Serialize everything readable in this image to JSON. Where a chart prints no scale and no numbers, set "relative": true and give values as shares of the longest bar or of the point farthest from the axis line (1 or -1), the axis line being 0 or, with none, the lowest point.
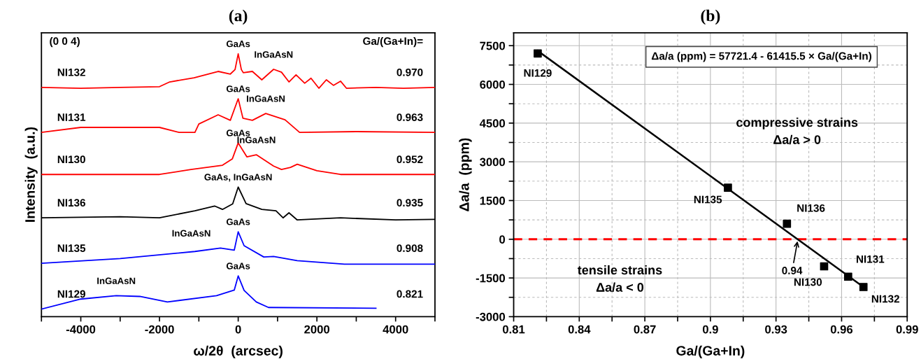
{
  "chart_data": [
    {
      "type": "line",
      "title": "(a)",
      "xlabel": "ω/2θ  (arcsec)",
      "ylabel": "Intensity  (a.u.)",
      "relative": true,
      "tick_labels": "x",
      "legend": false,
      "grid": false,
      "xlim": [
        -5000,
        5000
      ],
      "xticks": [
        {
          "value": -5000,
          "label": null
        },
        -4000,
        {
          "value": -3000,
          "label": null
        },
        -2000,
        {
          "value": -1000,
          "label": null
        },
        0,
        {
          "value": 1000,
          "label": null
        },
        2000,
        {
          "value": 3000,
          "label": null
        },
        4000,
        {
          "value": 5000,
          "label": null
        }
      ],
      "series": [
        {
          "name": "NI132",
          "color": "#ff0000",
          "x": [
            -5000,
            -4000,
            -3000,
            -2000,
            -1740,
            -1120,
            -510,
            -200,
            -80,
            0,
            80,
            130,
            360,
            600,
            900,
            1100,
            1290,
            1470,
            1690,
            1850,
            2050,
            2240,
            2420,
            2600,
            2750,
            3500,
            4200,
            5000
          ],
          "values": [
            0.872,
            0.869,
            0.872,
            0.875,
            0.893,
            0.909,
            0.933,
            0.923,
            0.94,
            1.0,
            0.94,
            0.928,
            0.933,
            0.901,
            0.941,
            0.93,
            0.893,
            0.92,
            0.888,
            0.907,
            0.869,
            0.901,
            0.88,
            0.896,
            0.869,
            0.872,
            0.869,
            0.872
          ]
        },
        {
          "name": "NI131",
          "color": "#ff0000",
          "x": [
            -5000,
            -4000,
            -3000,
            -2000,
            -1500,
            -1100,
            -1000,
            -510,
            -200,
            0,
            120,
            360,
            700,
            1190,
            1560,
            3000,
            5000
          ],
          "values": [
            0.701,
            0.72,
            0.72,
            0.72,
            0.701,
            0.701,
            0.733,
            0.768,
            0.747,
            0.829,
            0.755,
            0.747,
            0.773,
            0.749,
            0.701,
            0.704,
            0.701
          ]
        },
        {
          "name": "NI130",
          "color": "#ff0000",
          "x": [
            -5000,
            -3000,
            -2000,
            -1200,
            -400,
            -150,
            0,
            220,
            460,
            900,
            1100,
            1330,
            1500,
            2000,
            2600,
            5000
          ],
          "values": [
            0.541,
            0.541,
            0.541,
            0.56,
            0.576,
            0.6,
            0.661,
            0.608,
            0.616,
            0.573,
            0.56,
            0.568,
            0.58,
            0.555,
            0.541,
            0.541
          ]
        },
        {
          "name": "NI136",
          "color": "#000000",
          "x": [
            -5000,
            -3000,
            -2000,
            -1100,
            -600,
            -400,
            -140,
            0,
            200,
            600,
            960,
            1140,
            1290,
            1500,
            2600,
            4000,
            5000
          ],
          "values": [
            0.376,
            0.38,
            0.376,
            0.403,
            0.421,
            0.408,
            0.429,
            0.493,
            0.43,
            0.408,
            0.403,
            0.376,
            0.395,
            0.368,
            0.376,
            0.368,
            0.37
          ]
        },
        {
          "name": "NI135",
          "color": "#0000ff",
          "x": [
            -5000,
            -3000,
            -1100,
            -450,
            -100,
            0,
            150,
            650,
            900,
            1500,
            2700,
            5000
          ],
          "values": [
            0.203,
            0.221,
            0.248,
            0.261,
            0.253,
            0.323,
            0.27,
            0.227,
            0.229,
            0.213,
            0.2,
            0.2
          ]
        },
        {
          "name": "NI129",
          "color": "#0000ff",
          "x": [
            -5000,
            -4000,
            -3100,
            -2500,
            -1800,
            -550,
            -100,
            0,
            150,
            460,
            770,
            3500
          ],
          "values": [
            0.029,
            0.067,
            0.08,
            0.077,
            0.056,
            0.08,
            0.101,
            0.155,
            0.1,
            0.056,
            0.035,
            0.032
          ]
        }
      ],
      "annotations": [
        "(0 0 4)",
        "Ga/(Ga+In)=",
        "0.970",
        "0.963",
        "0.952",
        "0.935",
        "0.908",
        "0.821",
        {
          "text": "GaAs",
          "x": 0,
          "y": 1.0
        },
        {
          "text": "InGaAsN",
          "x": 900,
          "y": 0.941
        },
        {
          "text": "GaAs",
          "x": 0,
          "y": 0.829
        },
        {
          "text": "InGaAsN",
          "x": 700,
          "y": 0.773
        },
        {
          "text": "GaAs",
          "x": 0,
          "y": 0.661
        },
        {
          "text": "InGaAsN",
          "x": 460,
          "y": 0.616
        },
        {
          "text": "GaAs, InGaAsN",
          "x": 0,
          "y": 0.493
        },
        {
          "text": "GaAs",
          "x": 0,
          "y": 0.323
        },
        {
          "text": "InGaAsN",
          "x": -450,
          "y": 0.261
        },
        {
          "text": "GaAs",
          "x": 0,
          "y": 0.155
        },
        {
          "text": "InGaAsN",
          "x": -3100,
          "y": 0.08
        }
      ]
    },
    {
      "type": "scatter",
      "title": "(b)",
      "xlabel": "Ga/(Ga+In)",
      "ylabel": "Δa/a  (ppm)",
      "legend": false,
      "grid": true,
      "xlim": [
        0.81,
        0.99
      ],
      "xticks": [
        0.81,
        {
          "value": 0.825,
          "label": null
        },
        0.84,
        {
          "value": 0.855,
          "label": null
        },
        0.87,
        {
          "value": 0.885,
          "label": null
        },
        0.9,
        {
          "value": 0.915,
          "label": null
        },
        0.93,
        {
          "value": 0.945,
          "label": null
        },
        0.96,
        {
          "value": 0.975,
          "label": null
        },
        0.99
      ],
      "ylim": [
        -3000,
        8000
      ],
      "yticks": [
        -3000,
        {
          "value": -2250,
          "label": null
        },
        -1500,
        {
          "value": -750,
          "label": null
        },
        0,
        {
          "value": 750,
          "label": null
        },
        1500,
        {
          "value": 2250,
          "label": null
        },
        3000,
        {
          "value": 3750,
          "label": null
        },
        4500,
        {
          "value": 5250,
          "label": null
        },
        6000,
        {
          "value": 6750,
          "label": null
        },
        7500
      ],
      "series": [
        {
          "type": "line",
          "color": "#000000",
          "x": [
            0.821,
            0.97
          ],
          "values": [
            7300,
            -1850
          ]
        },
        {
          "type": "scatter",
          "color": "#000000",
          "marker": "square",
          "x": [
            0.821,
            0.908,
            0.935,
            0.952,
            0.963,
            0.97
          ],
          "values": [
            7200,
            2000,
            600,
            -1050,
            -1450,
            -1850
          ]
        }
      ],
      "ref_lines": [
        {
          "axis": "y",
          "value": 0,
          "color": "#ff0000",
          "line_style": "dashed"
        }
      ],
      "annotations": [
        "Δa/a (ppm) = 57721.4 - 61415.5 × Ga/(Ga+In)",
        "compressive strains\nΔa/a > 0",
        "tensile strains\nΔa/a < 0",
        {
          "text": "NI129",
          "x": 0.821,
          "y": 7200
        },
        {
          "text": "NI135",
          "x": 0.908,
          "y": 2000
        },
        {
          "text": "NI136",
          "x": 0.935,
          "y": 600
        },
        {
          "text": "NI130",
          "x": 0.952,
          "y": -1050
        },
        {
          "text": "NI131",
          "x": 0.963,
          "y": -1450
        },
        {
          "text": "NI132",
          "x": 0.97,
          "y": -1850
        },
        {
          "text": "0.94",
          "x": 0.94,
          "y": 0
        }
      ]
    }
  ]
}
